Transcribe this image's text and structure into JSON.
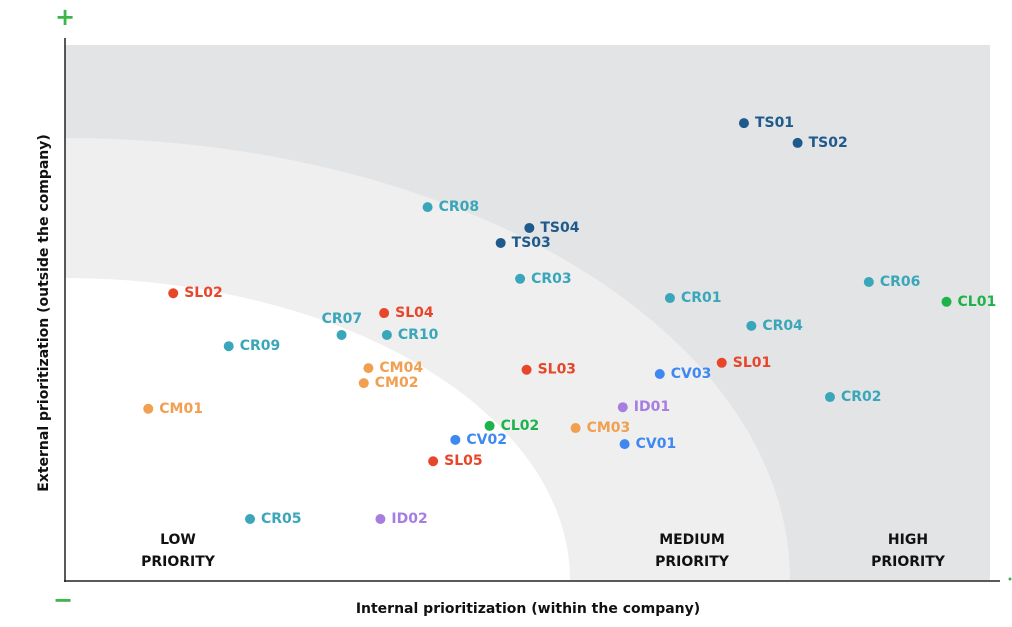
{
  "chart_data": {
    "type": "scatter",
    "x_label": "Internal prioritization (within the company)",
    "y_label": "External prioritization (outside the company)",
    "y_max_label": "+",
    "y_min_label": "−",
    "xlim": [
      0,
      100
    ],
    "ylim": [
      0,
      100
    ],
    "zone_labels": [
      [
        "LOW",
        "PRIORITY"
      ],
      [
        "MEDIUM",
        "PRIORITY"
      ],
      [
        "HIGH",
        "PRIORITY"
      ]
    ],
    "labels": [
      "TS01",
      "TS02",
      "CR08",
      "TS04",
      "TS03",
      "CR03",
      "SL02",
      "CR06",
      "CL01",
      "CR01",
      "SL04",
      "CR07",
      "CR10",
      "CR04",
      "CR09",
      "SL01",
      "CM04",
      "SL03",
      "CV03",
      "CM02",
      "CR02",
      "CM01",
      "ID01",
      "CL02",
      "CM03",
      "CV02",
      "CV01",
      "SL05",
      "CR05",
      "ID02"
    ],
    "x": [
      73.4,
      79.2,
      39.2,
      50.2,
      47.1,
      49.2,
      11.7,
      86.9,
      95.3,
      65.4,
      34.5,
      29.9,
      34.8,
      74.2,
      17.7,
      71.0,
      32.8,
      49.9,
      64.3,
      32.3,
      82.7,
      9.0,
      60.3,
      45.9,
      55.2,
      42.2,
      60.5,
      39.8,
      20.0,
      34.1
    ],
    "y": [
      85.4,
      81.7,
      69.7,
      65.8,
      63.0,
      56.3,
      53.6,
      55.7,
      52.0,
      52.7,
      49.9,
      45.8,
      45.8,
      47.5,
      43.7,
      40.6,
      39.6,
      39.3,
      38.5,
      36.8,
      34.2,
      32.0,
      32.3,
      28.8,
      28.4,
      26.2,
      25.4,
      22.2,
      11.4,
      11.4
    ],
    "colors": [
      "#1f5a8c",
      "#1f5a8c",
      "#3aa6b9",
      "#1f5a8c",
      "#1f5a8c",
      "#3aa6b9",
      "#e8462a",
      "#3aa6b9",
      "#1db34a",
      "#3aa6b9",
      "#e8462a",
      "#3aa6b9",
      "#3aa6b9",
      "#3aa6b9",
      "#3aa6b9",
      "#e8462a",
      "#f0a050",
      "#e8462a",
      "#3f88f2",
      "#f0a050",
      "#3aa6b9",
      "#f0a050",
      "#a77ee0",
      "#1db34a",
      "#f0a050",
      "#3f88f2",
      "#3f88f2",
      "#e8462a",
      "#3aa6b9",
      "#a77ee0"
    ]
  }
}
